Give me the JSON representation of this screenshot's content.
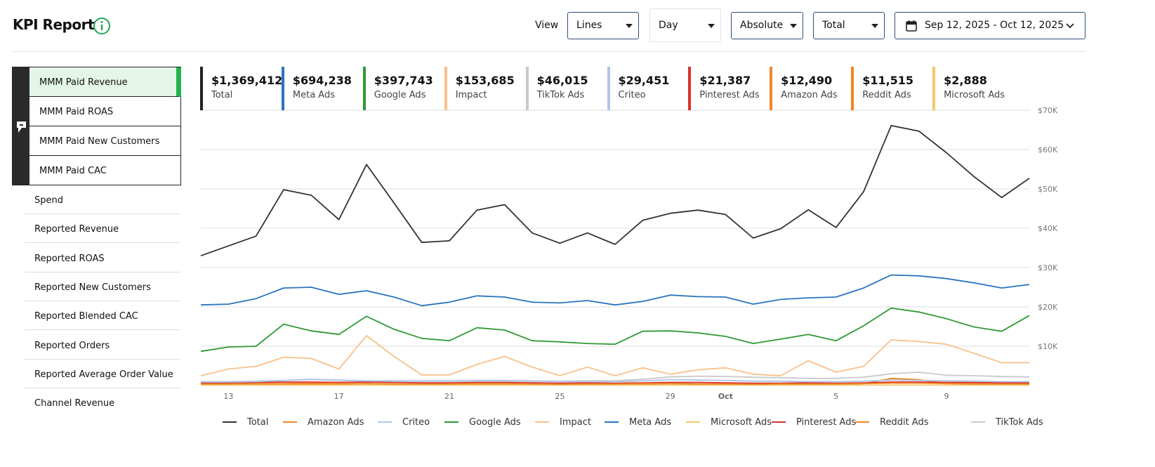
{
  "header": {
    "title": "KPI Report",
    "view_label": "View",
    "controls": [
      "Lines",
      "Day",
      "Absolute",
      "Total"
    ],
    "date_range": "Sep 12, 2025 - Oct 12, 2025"
  },
  "sidebar": {
    "group": [
      "MMM Paid Revenue",
      "MMM Paid ROAS",
      "MMM Paid New Customers",
      "MMM Paid CAC"
    ],
    "items": [
      "Spend",
      "Reported Revenue",
      "Reported ROAS",
      "Reported New Customers",
      "Reported Blended CAC",
      "Reported Orders",
      "Reported Average Order Value",
      "Channel Revenue"
    ]
  },
  "kpis": [
    {
      "value": "$1,369,412",
      "label": "Total",
      "color": "#222222"
    },
    {
      "value": "$694,238",
      "label": "Meta Ads",
      "color": "#2a74c0"
    },
    {
      "value": "$397,743",
      "label": "Google Ads",
      "color": "#2f9a34"
    },
    {
      "value": "$153,685",
      "label": "Impact",
      "color": "#f9c089"
    },
    {
      "value": "$46,015",
      "label": "TikTok Ads",
      "color": "#c9c9c9"
    },
    {
      "value": "$29,451",
      "label": "Criteo",
      "color": "#aec5ea"
    },
    {
      "value": "$21,387",
      "label": "Pinterest Ads",
      "color": "#d9322b"
    },
    {
      "value": "$12,490",
      "label": "Amazon Ads",
      "color": "#f0852a"
    },
    {
      "value": "$11,515",
      "label": "Reddit Ads",
      "color": "#f58220"
    },
    {
      "value": "$2,888",
      "label": "Microsoft Ads",
      "color": "#f6c766"
    }
  ],
  "chart_data": {
    "type": "line",
    "grid": true,
    "categories": [
      null,
      "13",
      null,
      null,
      null,
      "17",
      null,
      null,
      null,
      "21",
      null,
      null,
      null,
      "25",
      null,
      null,
      null,
      "29",
      null,
      "Oct",
      null,
      null,
      null,
      "5",
      null,
      null,
      null,
      "9",
      null,
      null,
      null
    ],
    "ylim": [
      0,
      70000
    ],
    "yticks": [
      {
        "value": 10000,
        "label": "$10K"
      },
      {
        "value": 20000,
        "label": "$20K"
      },
      {
        "value": 30000,
        "label": "$30K"
      },
      {
        "value": 40000,
        "label": "$40K"
      },
      {
        "value": 50000,
        "label": "$50K"
      },
      {
        "value": 60000,
        "label": "$60K"
      },
      {
        "value": 70000,
        "label": "$70K"
      }
    ],
    "series": [
      {
        "name": "Total",
        "color": "#333333",
        "values": [
          33000,
          35500,
          38000,
          49800,
          48400,
          42200,
          56200,
          46400,
          36400,
          36800,
          44600,
          46000,
          38800,
          36200,
          38800,
          35900,
          42000,
          43800,
          44600,
          43500,
          37500,
          39900,
          44700,
          40200,
          49300,
          66100,
          64700,
          59200,
          53100,
          47800,
          52700
        ]
      },
      {
        "name": "Amazon Ads",
        "color": "#f0852a",
        "values": [
          400,
          400,
          500,
          500,
          600,
          500,
          500,
          400,
          400,
          400,
          500,
          500,
          400,
          300,
          400,
          400,
          500,
          500,
          400,
          400,
          300,
          400,
          400,
          400,
          500,
          600,
          600,
          500,
          400,
          400,
          400
        ]
      },
      {
        "name": "Criteo",
        "color": "#aec5ea",
        "values": [
          900,
          900,
          1000,
          1300,
          1600,
          1400,
          1200,
          1100,
          1100,
          1100,
          1200,
          1200,
          1100,
          1000,
          1000,
          1000,
          1200,
          1500,
          1400,
          1300,
          1100,
          1100,
          1000,
          1000,
          1100,
          1400,
          1300,
          1200,
          1100,
          1000,
          1000
        ]
      },
      {
        "name": "Google Ads",
        "color": "#2f9a34",
        "values": [
          8700,
          9800,
          10000,
          15600,
          13900,
          13000,
          17600,
          14300,
          12000,
          11400,
          14700,
          14100,
          11400,
          11100,
          10700,
          10500,
          13800,
          13900,
          13400,
          12500,
          10700,
          11800,
          13000,
          11400,
          15200,
          19700,
          18700,
          17000,
          14900,
          13800,
          17800
        ]
      },
      {
        "name": "Impact",
        "color": "#f9c089",
        "values": [
          2500,
          4200,
          4900,
          7200,
          6900,
          4200,
          12700,
          7400,
          2700,
          2700,
          5400,
          7400,
          4700,
          2500,
          4700,
          2500,
          4500,
          2900,
          4000,
          4500,
          2900,
          2500,
          6300,
          3400,
          4900,
          11600,
          11200,
          10500,
          8200,
          5800,
          5800
        ]
      },
      {
        "name": "Meta Ads",
        "color": "#2a74c0",
        "values": [
          20500,
          20700,
          22100,
          24800,
          25000,
          23200,
          24100,
          22500,
          20300,
          21200,
          22800,
          22500,
          21200,
          21000,
          21600,
          20500,
          21400,
          23000,
          22600,
          22500,
          20700,
          21900,
          22300,
          22500,
          24800,
          28100,
          27900,
          27200,
          26100,
          24800,
          25700
        ]
      },
      {
        "name": "Microsoft Ads",
        "color": "#f6c766",
        "values": [
          100,
          100,
          100,
          100,
          100,
          100,
          100,
          100,
          100,
          100,
          100,
          100,
          100,
          100,
          100,
          100,
          100,
          100,
          100,
          100,
          100,
          100,
          100,
          100,
          100,
          100,
          100,
          100,
          100,
          100,
          100
        ]
      },
      {
        "name": "Pinterest Ads",
        "color": "#d9322b",
        "values": [
          700,
          700,
          800,
          900,
          900,
          800,
          900,
          800,
          700,
          700,
          800,
          800,
          700,
          600,
          700,
          600,
          700,
          800,
          800,
          700,
          600,
          600,
          700,
          600,
          700,
          900,
          900,
          800,
          800,
          700,
          700
        ]
      },
      {
        "name": "Reddit Ads",
        "color": "#f58220",
        "values": [
          300,
          300,
          300,
          400,
          400,
          400,
          500,
          400,
          300,
          300,
          400,
          400,
          300,
          200,
          300,
          300,
          400,
          500,
          400,
          400,
          300,
          300,
          400,
          300,
          500,
          1800,
          1500,
          600,
          500,
          400,
          400
        ]
      },
      {
        "name": "TikTok Ads",
        "color": "#c9c9c9",
        "values": [
          1000,
          1000,
          1100,
          1300,
          1500,
          1300,
          1200,
          1200,
          1200,
          1200,
          1300,
          1300,
          1200,
          1100,
          1200,
          1200,
          1600,
          2200,
          2400,
          2300,
          2100,
          2000,
          1800,
          1800,
          2100,
          3000,
          3400,
          2600,
          2500,
          2300,
          2200
        ]
      }
    ]
  }
}
